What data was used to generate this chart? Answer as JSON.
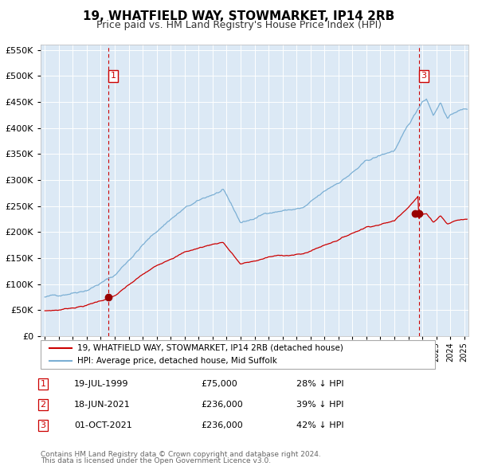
{
  "title": "19, WHATFIELD WAY, STOWMARKET, IP14 2RB",
  "subtitle": "Price paid vs. HM Land Registry's House Price Index (HPI)",
  "legend_label_red": "19, WHATFIELD WAY, STOWMARKET, IP14 2RB (detached house)",
  "legend_label_blue": "HPI: Average price, detached house, Mid Suffolk",
  "transactions": [
    {
      "label": "1",
      "date": "19-JUL-1999",
      "price": 75000,
      "hpi_pct": "28% ↓ HPI",
      "x_year": 1999.54
    },
    {
      "label": "2",
      "date": "18-JUN-2021",
      "price": 236000,
      "hpi_pct": "39% ↓ HPI",
      "x_year": 2021.46
    },
    {
      "label": "3",
      "date": "01-OCT-2021",
      "price": 236000,
      "hpi_pct": "42% ↓ HPI",
      "x_year": 2021.75
    }
  ],
  "footnote1": "Contains HM Land Registry data © Crown copyright and database right 2024.",
  "footnote2": "This data is licensed under the Open Government Licence v3.0.",
  "plot_bg_color": "#dce9f5",
  "grid_color": "#ffffff",
  "red_line_color": "#cc0000",
  "blue_line_color": "#7bafd4",
  "dashed_line_color": "#cc0000",
  "marker_color": "#990000",
  "box_color": "#cc0000",
  "ylim": [
    0,
    560000
  ],
  "xlim_start": 1994.7,
  "xlim_end": 2025.3,
  "yticks": [
    0,
    50000,
    100000,
    150000,
    200000,
    250000,
    300000,
    350000,
    400000,
    450000,
    500000,
    550000
  ]
}
